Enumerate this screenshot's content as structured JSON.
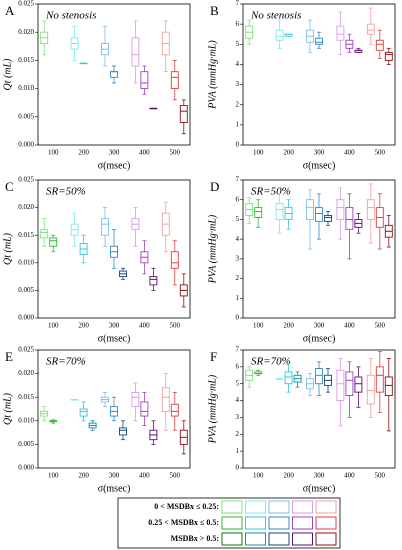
{
  "chart_data": [
    {
      "type": "box",
      "title": "A",
      "annotation": "No stenosis",
      "ylabel": "Qt (mL)",
      "xlabel": "σ(msec)",
      "categories": [
        "100",
        "200",
        "300",
        "400",
        "500"
      ],
      "ylim": [
        0,
        0.025
      ],
      "yticks": [
        {
          "value": 0,
          "label": "0.000"
        },
        {
          "value": 0.005,
          "label": "0.005"
        },
        {
          "value": 0.01,
          "label": "0.010"
        },
        {
          "value": 0.015,
          "label": "0.015"
        },
        {
          "value": 0.02,
          "label": "0.020"
        },
        {
          "value": 0.025,
          "label": "0.025"
        }
      ],
      "series": [
        {
          "values": [
            [
              0.016,
              0.018,
              0.019,
              0.02,
              0.022
            ],
            [
              0.015,
              0.017,
              0.018,
              0.019,
              0.021
            ],
            [
              0.014,
              0.016,
              0.017,
              0.018,
              0.021
            ],
            [
              0.011,
              0.014,
              0.016,
              0.019,
              0.022
            ],
            [
              0.013,
              0.016,
              0.018,
              0.02,
              0.022
            ]
          ]
        },
        {
          "values": [
            null,
            [
              0.0145,
              0.0145,
              0.0145,
              0.0145,
              0.0145
            ],
            [
              0.011,
              0.012,
              0.013,
              0.013,
              0.014
            ],
            [
              0.009,
              0.01,
              0.011,
              0.013,
              0.014
            ],
            [
              0.008,
              0.01,
              0.012,
              0.013,
              0.015
            ]
          ]
        },
        {
          "values": [
            null,
            null,
            null,
            [
              0.0065,
              0.0065,
              0.0065,
              0.0065,
              0.0065
            ],
            [
              0.002,
              0.004,
              0.006,
              0.007,
              0.008
            ]
          ]
        }
      ]
    },
    {
      "type": "box",
      "title": "B",
      "annotation": "No stenosis",
      "ylabel": "PVA (mmHg·mL)",
      "xlabel": "σ(msec)",
      "categories": [
        "100",
        "200",
        "300",
        "400",
        "500"
      ],
      "ylim": [
        0,
        7
      ],
      "yticks": [
        0,
        1,
        2,
        3,
        4,
        5,
        6,
        7
      ],
      "series": [
        {
          "values": [
            [
              5.0,
              5.3,
              5.6,
              5.9,
              6.2
            ],
            [
              4.8,
              5.2,
              5.4,
              5.7,
              6.2
            ],
            [
              4.6,
              5.1,
              5.4,
              5.7,
              6.2
            ],
            [
              4.5,
              5.2,
              5.5,
              5.9,
              6.6
            ],
            [
              5.0,
              5.5,
              5.7,
              6.0,
              6.8
            ]
          ]
        },
        {
          "values": [
            null,
            [
              5.4,
              5.4,
              5.5,
              5.5,
              5.5
            ],
            [
              4.8,
              5.0,
              5.1,
              5.3,
              5.6
            ],
            [
              4.6,
              4.8,
              5.0,
              5.2,
              5.5
            ],
            [
              4.3,
              4.7,
              5.0,
              5.2,
              5.7
            ]
          ]
        },
        {
          "values": [
            null,
            null,
            null,
            [
              4.6,
              4.6,
              4.7,
              4.7,
              4.8
            ],
            [
              4.0,
              4.2,
              4.5,
              4.6,
              4.8
            ]
          ]
        }
      ]
    },
    {
      "type": "box",
      "title": "C",
      "annotation": "SR=50%",
      "ylabel": "Qt (mL)",
      "xlabel": "σ(msec)",
      "categories": [
        "100",
        "200",
        "300",
        "400",
        "500"
      ],
      "ylim": [
        0,
        0.025
      ],
      "yticks": [
        {
          "value": 0,
          "label": "0.000"
        },
        {
          "value": 0.005,
          "label": "0.005"
        },
        {
          "value": 0.01,
          "label": "0.010"
        },
        {
          "value": 0.015,
          "label": "0.015"
        },
        {
          "value": 0.02,
          "label": "0.020"
        },
        {
          "value": 0.025,
          "label": "0.025"
        }
      ],
      "series": [
        {
          "values": [
            [
              0.013,
              0.0145,
              0.0155,
              0.016,
              0.018
            ],
            [
              0.013,
              0.015,
              0.016,
              0.017,
              0.019
            ],
            [
              0.013,
              0.015,
              0.017,
              0.018,
              0.02
            ],
            [
              0.013,
              0.016,
              0.017,
              0.018,
              0.02
            ],
            [
              0.012,
              0.015,
              0.017,
              0.019,
              0.021
            ]
          ]
        },
        {
          "values": [
            [
              0.012,
              0.013,
              0.014,
              0.0145,
              0.015
            ],
            [
              0.01,
              0.0115,
              0.0125,
              0.0135,
              0.015
            ],
            [
              0.009,
              0.011,
              0.012,
              0.013,
              0.016
            ],
            [
              0.008,
              0.01,
              0.011,
              0.012,
              0.014
            ],
            [
              0.006,
              0.009,
              0.01,
              0.012,
              0.014
            ]
          ]
        },
        {
          "values": [
            null,
            null,
            [
              0.007,
              0.0075,
              0.008,
              0.0085,
              0.009
            ],
            [
              0.005,
              0.006,
              0.007,
              0.0075,
              0.009
            ],
            [
              0.002,
              0.004,
              0.005,
              0.006,
              0.008
            ]
          ]
        }
      ]
    },
    {
      "type": "box",
      "title": "D",
      "annotation": "SR=50%",
      "ylabel": "PVA (mmHg·mL)",
      "xlabel": "σ(msec)",
      "categories": [
        "100",
        "200",
        "300",
        "400",
        "500"
      ],
      "ylim": [
        0,
        7
      ],
      "yticks": [
        0,
        1,
        2,
        3,
        4,
        5,
        6,
        7
      ],
      "series": [
        {
          "values": [
            [
              4.8,
              5.2,
              5.5,
              5.8,
              6.1
            ],
            [
              4.3,
              5.0,
              5.5,
              5.8,
              6.3
            ],
            [
              3.5,
              5.0,
              5.6,
              6.0,
              6.5
            ],
            [
              4.0,
              5.0,
              5.6,
              6.0,
              6.6
            ],
            [
              3.8,
              5.0,
              5.6,
              6.0,
              6.8
            ]
          ]
        },
        {
          "values": [
            [
              4.6,
              5.1,
              5.4,
              5.6,
              6.0
            ],
            [
              4.5,
              5.0,
              5.3,
              5.6,
              6.0
            ],
            [
              4.0,
              4.9,
              5.3,
              5.6,
              6.3
            ],
            [
              3.0,
              4.5,
              5.0,
              5.6,
              6.3
            ],
            [
              3.5,
              4.6,
              5.1,
              5.6,
              6.3
            ]
          ]
        },
        {
          "values": [
            null,
            null,
            [
              4.7,
              4.9,
              5.1,
              5.2,
              5.4
            ],
            [
              4.3,
              4.6,
              4.8,
              5.0,
              5.3
            ],
            [
              3.6,
              4.1,
              4.4,
              4.7,
              5.2
            ]
          ]
        }
      ]
    },
    {
      "type": "box",
      "title": "E",
      "annotation": "SR=70%",
      "ylabel": "Qt (mL)",
      "xlabel": "σ(msec)",
      "categories": [
        "100",
        "200",
        "300",
        "400",
        "500"
      ],
      "ylim": [
        0,
        0.025
      ],
      "yticks": [
        {
          "value": 0,
          "label": "0.000"
        },
        {
          "value": 0.005,
          "label": "0.005"
        },
        {
          "value": 0.01,
          "label": "0.010"
        },
        {
          "value": 0.015,
          "label": "0.015"
        },
        {
          "value": 0.02,
          "label": "0.020"
        },
        {
          "value": 0.025,
          "label": "0.025"
        }
      ],
      "series": [
        {
          "values": [
            [
              0.01,
              0.011,
              0.0115,
              0.012,
              0.013
            ],
            [
              0.0145,
              0.0145,
              0.0145,
              0.0145,
              0.0145
            ],
            [
              0.013,
              0.014,
              0.0145,
              0.015,
              0.016
            ],
            [
              0.01,
              0.013,
              0.015,
              0.016,
              0.018
            ],
            [
              0.008,
              0.012,
              0.015,
              0.017,
              0.02
            ]
          ]
        },
        {
          "values": [
            [
              0.0095,
              0.0098,
              0.01,
              0.01,
              0.0102
            ],
            [
              0.01,
              0.011,
              0.012,
              0.0125,
              0.014
            ],
            [
              0.01,
              0.011,
              0.012,
              0.013,
              0.015
            ],
            [
              0.009,
              0.011,
              0.012,
              0.014,
              0.016
            ],
            [
              0.008,
              0.011,
              0.012,
              0.0135,
              0.016
            ]
          ]
        },
        {
          "values": [
            null,
            [
              0.008,
              0.0085,
              0.009,
              0.0095,
              0.01
            ],
            [
              0.006,
              0.007,
              0.008,
              0.0085,
              0.01
            ],
            [
              0.005,
              0.006,
              0.007,
              0.008,
              0.01
            ],
            [
              0.003,
              0.005,
              0.0065,
              0.008,
              0.01
            ]
          ]
        }
      ]
    },
    {
      "type": "box",
      "title": "F",
      "annotation": "SR=70%",
      "ylabel": "PVA (mmHg·mL)",
      "xlabel": "σ(msec)",
      "categories": [
        "100",
        "200",
        "300",
        "400",
        "500"
      ],
      "ylim": [
        0,
        7
      ],
      "yticks": [
        0,
        1,
        2,
        3,
        4,
        5,
        6,
        7
      ],
      "series": [
        {
          "values": [
            [
              4.8,
              5.2,
              5.5,
              5.8,
              6.0
            ],
            [
              5.3,
              5.3,
              5.3,
              5.3,
              5.3
            ],
            [
              4.3,
              4.7,
              5.0,
              5.3,
              5.6
            ],
            [
              2.5,
              4.0,
              5.0,
              5.8,
              6.5
            ],
            [
              3.0,
              3.8,
              4.6,
              5.5,
              6.5
            ]
          ]
        },
        {
          "values": [
            [
              5.5,
              5.6,
              5.6,
              5.7,
              5.8
            ],
            [
              4.5,
              5.0,
              5.4,
              5.7,
              6.2
            ],
            [
              4.3,
              5.0,
              5.5,
              5.9,
              6.3
            ],
            [
              3.0,
              4.3,
              5.2,
              5.7,
              6.3
            ],
            [
              3.3,
              4.5,
              5.5,
              6.0,
              6.9
            ]
          ]
        },
        {
          "values": [
            null,
            [
              4.8,
              5.1,
              5.3,
              5.5,
              5.7
            ],
            [
              4.5,
              4.9,
              5.2,
              5.5,
              5.9
            ],
            [
              3.6,
              4.5,
              5.0,
              5.4,
              6.0
            ],
            [
              2.2,
              4.3,
              4.9,
              5.4,
              6.5
            ]
          ]
        }
      ]
    }
  ],
  "legend": {
    "labels": [
      "0 < MSDBx ≤ 0.25:",
      "0.25 < MSDBx ≤ 0.5:",
      "MSDBx > 0.5:"
    ],
    "colors": [
      [
        "#7fe07f",
        "#7fe8f0",
        "#7fbfe8",
        "#d99ae8",
        "#f0a0a0"
      ],
      [
        "#33b833",
        "#33c8d8",
        "#3388c8",
        "#a040c0",
        "#d84040"
      ],
      [
        "#0a7a0a",
        "#1090a0",
        "#104880",
        "#5a1070",
        "#901010"
      ]
    ]
  }
}
